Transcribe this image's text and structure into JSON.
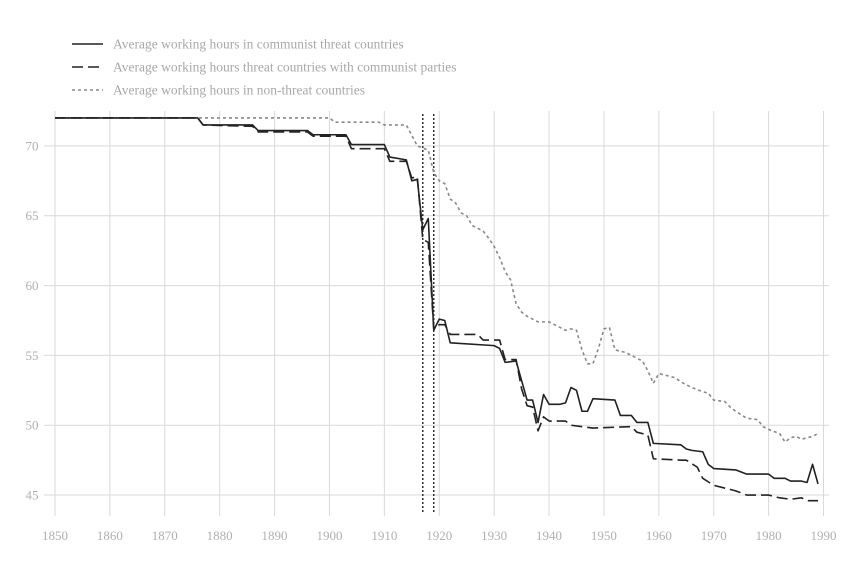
{
  "chart_data": {
    "type": "line",
    "title": "",
    "xlabel": "",
    "ylabel": "",
    "xlim": [
      1848,
      1991
    ],
    "ylim": [
      43.5,
      72.5
    ],
    "x_ticks": [
      1850,
      1860,
      1870,
      1880,
      1890,
      1900,
      1910,
      1920,
      1930,
      1940,
      1950,
      1960,
      1970,
      1980,
      1990
    ],
    "y_ticks": [
      45,
      50,
      55,
      60,
      65,
      70
    ],
    "grid": true,
    "legend_position": "top-left",
    "vertical_markers": [
      1917,
      1919
    ],
    "series": [
      {
        "name": "Average working hours in communist threat countries",
        "style": "solid",
        "color": "#222222",
        "points": [
          [
            1850,
            72
          ],
          [
            1876,
            72
          ],
          [
            1877,
            71.5
          ],
          [
            1886,
            71.5
          ],
          [
            1887,
            71.1
          ],
          [
            1896,
            71.1
          ],
          [
            1897,
            70.8
          ],
          [
            1903,
            70.8
          ],
          [
            1904,
            70.1
          ],
          [
            1910,
            70.1
          ],
          [
            1911,
            69.2
          ],
          [
            1914,
            69.0
          ],
          [
            1915,
            67.5
          ],
          [
            1916,
            67.6
          ],
          [
            1917,
            64.0
          ],
          [
            1918,
            64.8
          ],
          [
            1919,
            56.8
          ],
          [
            1920,
            57.6
          ],
          [
            1921,
            57.5
          ],
          [
            1922,
            55.9
          ],
          [
            1930,
            55.7
          ],
          [
            1931,
            55.5
          ],
          [
            1932,
            54.5
          ],
          [
            1934,
            54.6
          ],
          [
            1935,
            53.2
          ],
          [
            1936,
            51.8
          ],
          [
            1937,
            51.8
          ],
          [
            1938,
            50.2
          ],
          [
            1939,
            52.2
          ],
          [
            1940,
            51.5
          ],
          [
            1942,
            51.5
          ],
          [
            1943,
            51.6
          ],
          [
            1944,
            52.7
          ],
          [
            1945,
            52.5
          ],
          [
            1946,
            51.0
          ],
          [
            1947,
            51.0
          ],
          [
            1948,
            51.9
          ],
          [
            1952,
            51.8
          ],
          [
            1953,
            50.7
          ],
          [
            1955,
            50.7
          ],
          [
            1956,
            50.2
          ],
          [
            1958,
            50.2
          ],
          [
            1959,
            48.7
          ],
          [
            1964,
            48.6
          ],
          [
            1965,
            48.3
          ],
          [
            1966,
            48.2
          ],
          [
            1968,
            48.1
          ],
          [
            1969,
            47.2
          ],
          [
            1970,
            46.9
          ],
          [
            1974,
            46.8
          ],
          [
            1976,
            46.5
          ],
          [
            1980,
            46.5
          ],
          [
            1981,
            46.2
          ],
          [
            1983,
            46.2
          ],
          [
            1984,
            46.0
          ],
          [
            1986,
            46.0
          ],
          [
            1987,
            45.9
          ],
          [
            1988,
            47.2
          ],
          [
            1989,
            45.8
          ]
        ]
      },
      {
        "name": "Average working hours threat countries with communist parties",
        "style": "dashed",
        "color": "#222222",
        "points": [
          [
            1850,
            72
          ],
          [
            1876,
            72
          ],
          [
            1877,
            71.5
          ],
          [
            1886,
            71.4
          ],
          [
            1887,
            71.0
          ],
          [
            1896,
            71.0
          ],
          [
            1897,
            70.7
          ],
          [
            1903,
            70.7
          ],
          [
            1904,
            69.8
          ],
          [
            1910,
            69.8
          ],
          [
            1911,
            68.9
          ],
          [
            1914,
            68.9
          ],
          [
            1915,
            67.7
          ],
          [
            1916,
            67.8
          ],
          [
            1917,
            63.3
          ],
          [
            1918,
            63.1
          ],
          [
            1919,
            56.9
          ],
          [
            1920,
            57.2
          ],
          [
            1921,
            57.2
          ],
          [
            1922,
            56.5
          ],
          [
            1927,
            56.5
          ],
          [
            1928,
            56.1
          ],
          [
            1931,
            56.1
          ],
          [
            1932,
            54.7
          ],
          [
            1934,
            54.7
          ],
          [
            1935,
            52.6
          ],
          [
            1936,
            51.4
          ],
          [
            1937,
            51.3
          ],
          [
            1938,
            49.6
          ],
          [
            1939,
            50.6
          ],
          [
            1940,
            50.3
          ],
          [
            1943,
            50.3
          ],
          [
            1944,
            50.0
          ],
          [
            1948,
            49.8
          ],
          [
            1955,
            49.9
          ],
          [
            1956,
            49.5
          ],
          [
            1958,
            49.3
          ],
          [
            1959,
            47.6
          ],
          [
            1964,
            47.5
          ],
          [
            1965,
            47.5
          ],
          [
            1967,
            47.0
          ],
          [
            1968,
            46.2
          ],
          [
            1970,
            45.7
          ],
          [
            1974,
            45.3
          ],
          [
            1976,
            45.0
          ],
          [
            1980,
            45.0
          ],
          [
            1982,
            44.8
          ],
          [
            1984,
            44.7
          ],
          [
            1986,
            44.8
          ],
          [
            1987,
            44.6
          ],
          [
            1989,
            44.6
          ]
        ]
      },
      {
        "name": "Average working hours in non-threat countries",
        "style": "dotted",
        "color": "#888888",
        "points": [
          [
            1850,
            72
          ],
          [
            1900,
            72
          ],
          [
            1901,
            71.7
          ],
          [
            1909,
            71.7
          ],
          [
            1910,
            71.5
          ],
          [
            1914,
            71.5
          ],
          [
            1916,
            70.0
          ],
          [
            1918,
            69.7
          ],
          [
            1919,
            68.1
          ],
          [
            1920,
            67.5
          ],
          [
            1921,
            67.3
          ],
          [
            1922,
            66.2
          ],
          [
            1923,
            65.9
          ],
          [
            1924,
            65.2
          ],
          [
            1925,
            65.0
          ],
          [
            1926,
            64.3
          ],
          [
            1928,
            63.9
          ],
          [
            1929,
            63.4
          ],
          [
            1930,
            62.8
          ],
          [
            1931,
            62.0
          ],
          [
            1932,
            61.0
          ],
          [
            1933,
            60.4
          ],
          [
            1934,
            58.7
          ],
          [
            1935,
            58.1
          ],
          [
            1936,
            57.8
          ],
          [
            1937,
            57.6
          ],
          [
            1938,
            57.4
          ],
          [
            1940,
            57.4
          ],
          [
            1941,
            57.2
          ],
          [
            1943,
            56.8
          ],
          [
            1944,
            56.9
          ],
          [
            1945,
            56.8
          ],
          [
            1946,
            55.4
          ],
          [
            1947,
            54.4
          ],
          [
            1948,
            54.4
          ],
          [
            1949,
            55.5
          ],
          [
            1950,
            56.9
          ],
          [
            1951,
            57.0
          ],
          [
            1952,
            55.4
          ],
          [
            1954,
            55.2
          ],
          [
            1955,
            55.0
          ],
          [
            1957,
            54.6
          ],
          [
            1958,
            53.9
          ],
          [
            1959,
            53.0
          ],
          [
            1960,
            53.7
          ],
          [
            1962,
            53.5
          ],
          [
            1963,
            53.4
          ],
          [
            1964,
            53.1
          ],
          [
            1966,
            52.7
          ],
          [
            1968,
            52.4
          ],
          [
            1969,
            52.3
          ],
          [
            1970,
            51.8
          ],
          [
            1972,
            51.7
          ],
          [
            1973,
            51.3
          ],
          [
            1974,
            51.0
          ],
          [
            1976,
            50.5
          ],
          [
            1978,
            50.4
          ],
          [
            1979,
            49.9
          ],
          [
            1980,
            49.7
          ],
          [
            1982,
            49.4
          ],
          [
            1983,
            48.8
          ],
          [
            1984,
            49.1
          ],
          [
            1985,
            49.2
          ],
          [
            1986,
            49.0
          ],
          [
            1988,
            49.2
          ],
          [
            1989,
            49.4
          ]
        ]
      }
    ]
  }
}
